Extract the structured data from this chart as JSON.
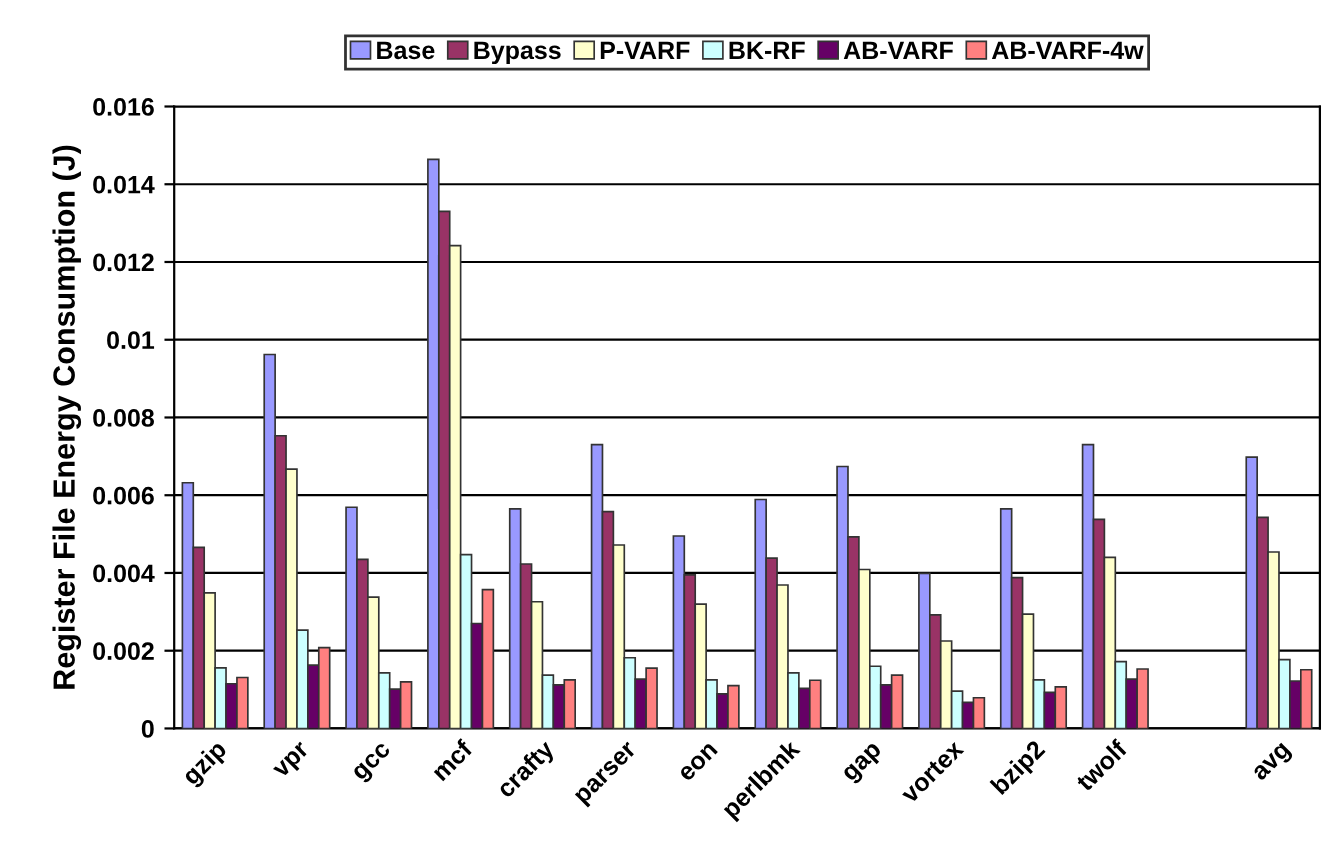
{
  "chart_data": {
    "type": "bar",
    "ylabel": "Register File Energy Consumption (J)",
    "categories": [
      "gzip",
      "vpr",
      "gcc",
      "mcf",
      "crafty",
      "parser",
      "eon",
      "perlbmk",
      "gap",
      "vortex",
      "bzip2",
      "twolf",
      null,
      "avg"
    ],
    "series": [
      {
        "name": "Base",
        "color": "#9999ff",
        "values": [
          0.00632,
          0.00962,
          0.00569,
          0.01464,
          0.00565,
          0.0073,
          0.00495,
          0.00589,
          0.00674,
          0.00399,
          0.00565,
          0.0073,
          null,
          0.00698
        ]
      },
      {
        "name": "Bypass",
        "color": "#993366",
        "values": [
          0.00466,
          0.00753,
          0.00435,
          0.0133,
          0.00423,
          0.00558,
          0.00395,
          0.00438,
          0.00493,
          0.00292,
          0.00388,
          0.00538,
          null,
          0.00543
        ]
      },
      {
        "name": "P-VARF",
        "color": "#ffffcc",
        "values": [
          0.00349,
          0.00667,
          0.00338,
          0.01242,
          0.00326,
          0.00472,
          0.0032,
          0.00369,
          0.00409,
          0.00225,
          0.00294,
          0.0044,
          null,
          0.00454
        ]
      },
      {
        "name": "BK-RF",
        "color": "#ccffff",
        "values": [
          0.00156,
          0.00253,
          0.00143,
          0.00447,
          0.00137,
          0.00182,
          0.00125,
          0.00143,
          0.0016,
          0.00096,
          0.00125,
          0.00172,
          null,
          0.00177
        ]
      },
      {
        "name": "AB-VARF",
        "color": "#660066",
        "values": [
          0.00115,
          0.00163,
          0.00101,
          0.0027,
          0.00112,
          0.00127,
          0.00089,
          0.00103,
          0.00112,
          0.00067,
          0.00093,
          0.00127,
          null,
          0.00122
        ]
      },
      {
        "name": "AB-VARF-4w",
        "color": "#ff8080",
        "values": [
          0.00131,
          0.00208,
          0.0012,
          0.00357,
          0.00125,
          0.00155,
          0.0011,
          0.00124,
          0.00137,
          0.00079,
          0.00107,
          0.00153,
          null,
          0.00151
        ]
      }
    ],
    "ylim": [
      0,
      0.016
    ],
    "yticks": [
      0,
      0.002,
      0.004,
      0.006,
      0.008,
      0.01,
      0.012,
      0.014,
      0.016
    ],
    "grid": "y",
    "legend": "top"
  }
}
